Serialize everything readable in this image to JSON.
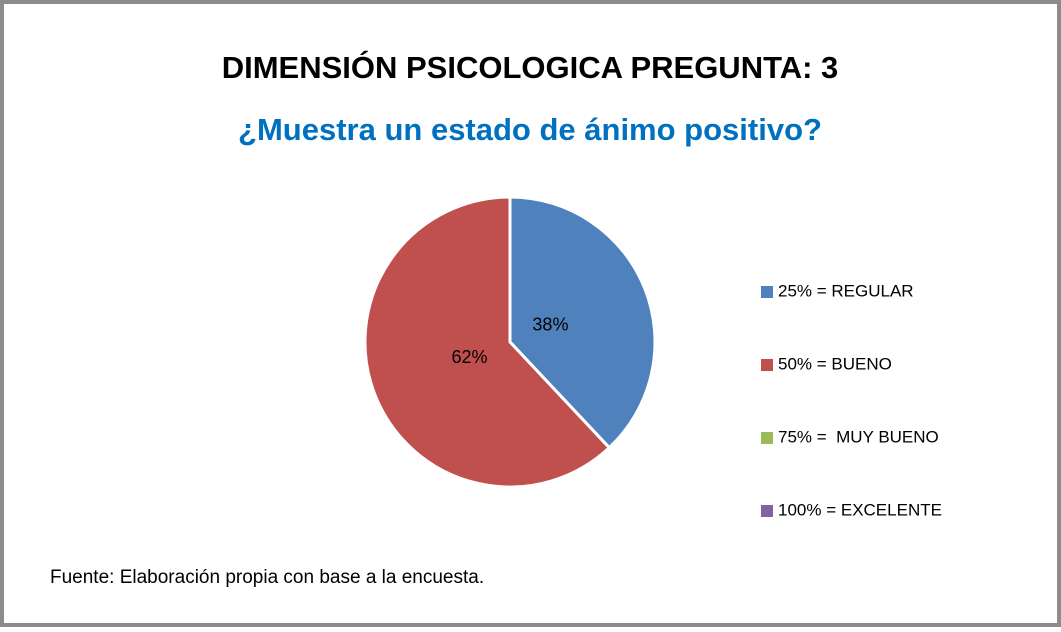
{
  "chart_data": {
    "type": "pie",
    "title": "DIMENSIÓN PSICOLOGICA PREGUNTA: 3",
    "subtitle": "¿Muestra un estado de ánimo positivo?",
    "categories": [
      "25% = REGULAR",
      "50% = BUENO",
      "75% =  MUY BUENO",
      "100% = EXCELENTE"
    ],
    "values": [
      38,
      62,
      0,
      0
    ],
    "value_labels": [
      "38%",
      "62%",
      null,
      null
    ],
    "colors": [
      "#4f81bd",
      "#c0504d",
      "#9bbb59",
      "#8064a2"
    ],
    "legend": "right",
    "note": "Fuente: Elaboración propia con base a la encuesta."
  }
}
